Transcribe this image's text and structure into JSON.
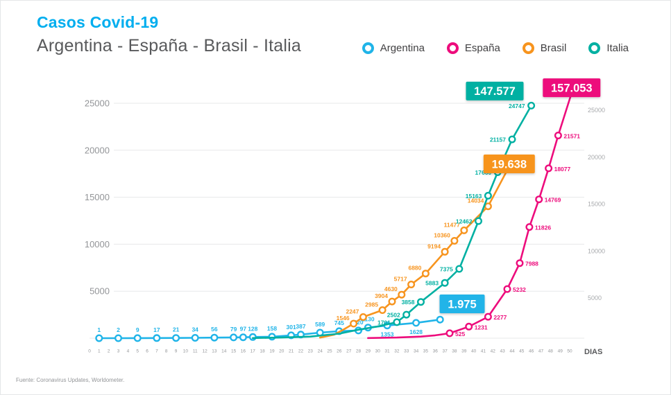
{
  "colors": {
    "title": "#00AEEF",
    "background": "#FFFFFF",
    "grid": "#E7E8EA",
    "axis_text": "#939598",
    "right_axis_text": "#A7A9AC",
    "subtitle_text": "#58595B"
  },
  "header": {
    "title": "Casos Covid-19",
    "subtitle": "Argentina - España - Brasil - Italia"
  },
  "legend": [
    {
      "label": "Argentina",
      "color": "#20B4E8"
    },
    {
      "label": "España",
      "color": "#ED0C7C"
    },
    {
      "label": "Brasil",
      "color": "#F7941E"
    },
    {
      "label": "Italia",
      "color": "#00B0A2"
    }
  ],
  "footer": {
    "source": "Fuente: Coronavirus Updates, Worldometer."
  },
  "chart_data": {
    "type": "line",
    "title": "Casos Covid-19 — Argentina - España - Brasil - Italia",
    "xlabel": "DIAS",
    "ylabel": "",
    "xlim": [
      0,
      50
    ],
    "ylim": [
      0,
      25000
    ],
    "grid": "horizontal",
    "legend_position": "top-right",
    "x_ticks": [
      0,
      1,
      2,
      3,
      4,
      5,
      6,
      7,
      8,
      9,
      10,
      11,
      12,
      13,
      14,
      15,
      16,
      17,
      18,
      19,
      20,
      21,
      22,
      23,
      24,
      25,
      26,
      27,
      28,
      29,
      30,
      31,
      32,
      33,
      34,
      35,
      36,
      37,
      38,
      39,
      40,
      41,
      42,
      43,
      44,
      45,
      46,
      47,
      48,
      49,
      50
    ],
    "y_ticks": [
      5000,
      10000,
      15000,
      20000,
      25000
    ],
    "series": [
      {
        "key": "argentina",
        "name": "Argentina",
        "color": "#20B4E8",
        "label_pos": "above",
        "points": [
          [
            1,
            1,
            "1"
          ],
          [
            3,
            2,
            "2"
          ],
          [
            5,
            9,
            "9"
          ],
          [
            7,
            17,
            "17"
          ],
          [
            9,
            21,
            "21"
          ],
          [
            11,
            34,
            "34"
          ],
          [
            13,
            56,
            "56"
          ],
          [
            15,
            79,
            "79"
          ],
          [
            16,
            97,
            "97"
          ],
          [
            17,
            128,
            "128"
          ],
          [
            19,
            158,
            "158"
          ],
          [
            21,
            301,
            "301"
          ],
          [
            22,
            387,
            "387"
          ],
          [
            24,
            589,
            "589"
          ],
          [
            26,
            745,
            "745"
          ],
          [
            28,
            820,
            "820"
          ],
          [
            29,
            1130,
            "1130"
          ],
          [
            31,
            1353,
            "1353",
            "b"
          ],
          [
            34,
            1628,
            "1628",
            "b"
          ],
          [
            36.5,
            1975,
            ""
          ]
        ],
        "callout": {
          "text": "1.975",
          "day": 38.8,
          "value": 3650
        }
      },
      {
        "key": "espana",
        "name": "España",
        "color": "#ED0C7C",
        "label_pos": "right",
        "lead": [
          [
            29,
            15
          ],
          [
            32,
            70
          ],
          [
            34.5,
            170
          ],
          [
            36,
            300
          ]
        ],
        "points": [
          [
            37.5,
            525,
            "525"
          ],
          [
            39.5,
            1231,
            "1231"
          ],
          [
            41.5,
            2277,
            "2277"
          ],
          [
            43.5,
            5232,
            "5232"
          ],
          [
            44.8,
            7988,
            "7988"
          ],
          [
            45.8,
            11826,
            "11826"
          ],
          [
            46.8,
            14769,
            "14769"
          ],
          [
            47.8,
            18077,
            "18077"
          ],
          [
            48.8,
            21571,
            "21571"
          ]
        ],
        "tail": [
          50.2,
          26100
        ],
        "callout": {
          "text": "157.053",
          "day": 50.2,
          "value": 26650
        }
      },
      {
        "key": "brasil",
        "name": "Brasil",
        "color": "#F7941E",
        "label_pos": "upleft",
        "lead": [
          [
            24,
            60
          ],
          [
            25.5,
            380
          ],
          [
            26.5,
            950
          ]
        ],
        "points": [
          [
            27.5,
            1546,
            "1546"
          ],
          [
            28.5,
            2247,
            "2247"
          ],
          [
            30.5,
            2985,
            "2985"
          ],
          [
            31.5,
            3904,
            "3904"
          ],
          [
            32.5,
            4630,
            "4630"
          ],
          [
            33.5,
            5717,
            "5717"
          ],
          [
            35,
            6880,
            "6880"
          ],
          [
            37,
            9194,
            "9194"
          ],
          [
            38,
            10360,
            "10360"
          ],
          [
            39,
            11477,
            "11477"
          ],
          [
            41.5,
            14034,
            "14034"
          ]
        ],
        "tail": [
          43.4,
          17700
        ],
        "callout": {
          "text": "19.638",
          "day": 43.7,
          "value": 18550
        }
      },
      {
        "key": "italia",
        "name": "Italia",
        "color": "#00B0A2",
        "label_pos": "left",
        "lead": [
          [
            17,
            15
          ],
          [
            20,
            70
          ],
          [
            23,
            170
          ],
          [
            26,
            480
          ],
          [
            28,
            900
          ],
          [
            30,
            1250
          ]
        ],
        "points": [
          [
            32,
            1701,
            "1701"
          ],
          [
            33,
            2502,
            "2502"
          ],
          [
            34.5,
            3858,
            "3858"
          ],
          [
            37,
            5883,
            "5883"
          ],
          [
            38.5,
            7375,
            "7375"
          ],
          [
            40.5,
            12462,
            "12462"
          ],
          [
            41.5,
            15163,
            "15163"
          ],
          [
            42.5,
            17660,
            "17660"
          ],
          [
            44,
            21157,
            "21157"
          ],
          [
            46,
            24747,
            "24747"
          ]
        ],
        "callout": {
          "text": "147.577",
          "day": 42.2,
          "value": 26300
        }
      }
    ]
  }
}
